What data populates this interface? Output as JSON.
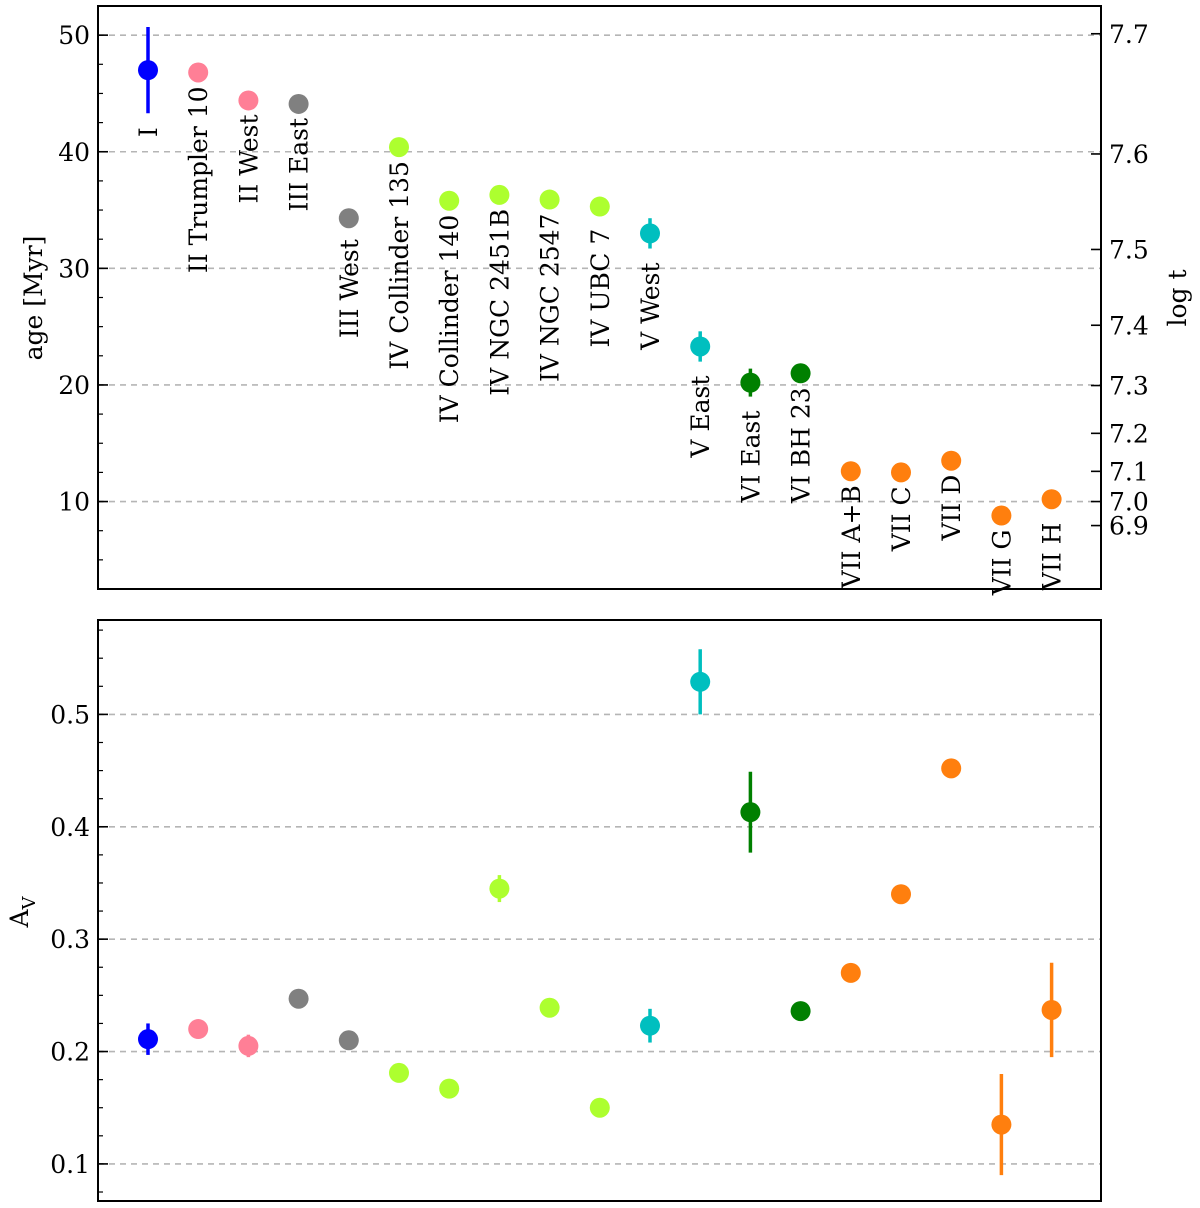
{
  "chart_data": [
    {
      "type": "scatter",
      "panel": "top",
      "ylabel": "age [Myr]",
      "ylim": [
        2.5,
        52.5
      ],
      "yticks": [
        10,
        20,
        30,
        40,
        50
      ],
      "grid": "horizontal dashed at y ticks",
      "right_axis": {
        "label": "log t",
        "ticks": [
          {
            "label": "6.9",
            "age": 7.94
          },
          {
            "label": "7.0",
            "age": 10.0
          },
          {
            "label": "7.1",
            "age": 12.59
          },
          {
            "label": "7.2",
            "age": 15.85
          },
          {
            "label": "7.3",
            "age": 19.95
          },
          {
            "label": "7.4",
            "age": 25.12
          },
          {
            "label": "7.5",
            "age": 31.62
          },
          {
            "label": "7.6",
            "age": 39.81
          },
          {
            "label": "7.7",
            "age": 50.12
          }
        ]
      },
      "points": [
        {
          "label": "I",
          "y": 47.0,
          "err": 3.7,
          "color": "#0000ff"
        },
        {
          "label": "II Trumpler 10",
          "y": 46.8,
          "err": 0.0,
          "color": "#ff7f96"
        },
        {
          "label": "II West",
          "y": 44.4,
          "err": 0.0,
          "color": "#ff7f96"
        },
        {
          "label": "III East",
          "y": 44.1,
          "err": 0.0,
          "color": "#808080"
        },
        {
          "label": "III West",
          "y": 34.3,
          "err": 0.6,
          "color": "#808080"
        },
        {
          "label": "IV Collinder 135",
          "y": 40.4,
          "err": 0.0,
          "color": "#adff2f"
        },
        {
          "label": "IV Collinder 140",
          "y": 35.8,
          "err": 0.0,
          "color": "#adff2f"
        },
        {
          "label": "IV NGC 2451B",
          "y": 36.3,
          "err": 0.0,
          "color": "#adff2f"
        },
        {
          "label": "IV NGC 2547",
          "y": 35.9,
          "err": 0.0,
          "color": "#adff2f"
        },
        {
          "label": "IV UBC 7",
          "y": 35.3,
          "err": 0.7,
          "color": "#adff2f"
        },
        {
          "label": "V West",
          "y": 33.0,
          "err": 1.3,
          "color": "#00bfbf"
        },
        {
          "label": "V East",
          "y": 23.3,
          "err": 1.3,
          "color": "#00bfbf"
        },
        {
          "label": "VI East",
          "y": 20.2,
          "err": 1.2,
          "color": "#008000"
        },
        {
          "label": "VI BH 23",
          "y": 21.0,
          "err": 0.0,
          "color": "#008000"
        },
        {
          "label": "VII A+B",
          "y": 12.6,
          "err": 0.0,
          "color": "#ff7f0e"
        },
        {
          "label": "VII C",
          "y": 12.5,
          "err": 0.0,
          "color": "#ff7f0e"
        },
        {
          "label": "VII D",
          "y": 13.5,
          "err": 0.0,
          "color": "#ff7f0e"
        },
        {
          "label": "VII G",
          "y": 8.8,
          "err": 0.0,
          "color": "#ff7f0e"
        },
        {
          "label": "VII H",
          "y": 10.2,
          "err": 0.8,
          "color": "#ff7f0e"
        }
      ]
    },
    {
      "type": "scatter",
      "panel": "bottom",
      "ylabel": "A",
      "ylabel_sub": "V",
      "ylim": [
        0.067,
        0.584
      ],
      "yticks": [
        0.1,
        0.2,
        0.3,
        0.4,
        0.5
      ],
      "ytick_labels": [
        "0.1",
        "0.2",
        "0.3",
        "0.4",
        "0.5"
      ],
      "grid": "horizontal dashed at y ticks",
      "points": [
        {
          "label": "I",
          "y": 0.211,
          "err": 0.014,
          "color": "#0000ff"
        },
        {
          "label": "II Trumpler 10",
          "y": 0.22,
          "err": 0.0,
          "color": "#ff7f96"
        },
        {
          "label": "II West",
          "y": 0.205,
          "err": 0.01,
          "color": "#ff7f96"
        },
        {
          "label": "III East",
          "y": 0.247,
          "err": 0.0,
          "color": "#808080"
        },
        {
          "label": "III West",
          "y": 0.21,
          "err": 0.0,
          "color": "#808080"
        },
        {
          "label": "IV Collinder 135",
          "y": 0.181,
          "err": 0.0,
          "color": "#adff2f"
        },
        {
          "label": "IV Collinder 140",
          "y": 0.167,
          "err": 0.0,
          "color": "#adff2f"
        },
        {
          "label": "IV NGC 2451B",
          "y": 0.345,
          "err": 0.012,
          "color": "#adff2f"
        },
        {
          "label": "IV NGC 2547",
          "y": 0.239,
          "err": 0.0,
          "color": "#adff2f"
        },
        {
          "label": "IV UBC 7",
          "y": 0.15,
          "err": 0.008,
          "color": "#adff2f"
        },
        {
          "label": "V West",
          "y": 0.223,
          "err": 0.015,
          "color": "#00bfbf"
        },
        {
          "label": "V East",
          "y": 0.529,
          "err": 0.029,
          "color": "#00bfbf"
        },
        {
          "label": "VI East",
          "y": 0.413,
          "err": 0.036,
          "color": "#008000"
        },
        {
          "label": "VI BH 23",
          "y": 0.236,
          "err": 0.006,
          "color": "#008000"
        },
        {
          "label": "VII A+B",
          "y": 0.27,
          "err": 0.0,
          "color": "#ff7f0e"
        },
        {
          "label": "VII C",
          "y": 0.34,
          "err": 0.0,
          "color": "#ff7f0e"
        },
        {
          "label": "VII D",
          "y": 0.452,
          "err": 0.0,
          "color": "#ff7f0e"
        },
        {
          "label": "VII G",
          "y": 0.135,
          "err": 0.045,
          "color": "#ff7f0e"
        },
        {
          "label": "VII H",
          "y": 0.237,
          "err": 0.042,
          "color": "#ff7f0e"
        }
      ]
    }
  ]
}
